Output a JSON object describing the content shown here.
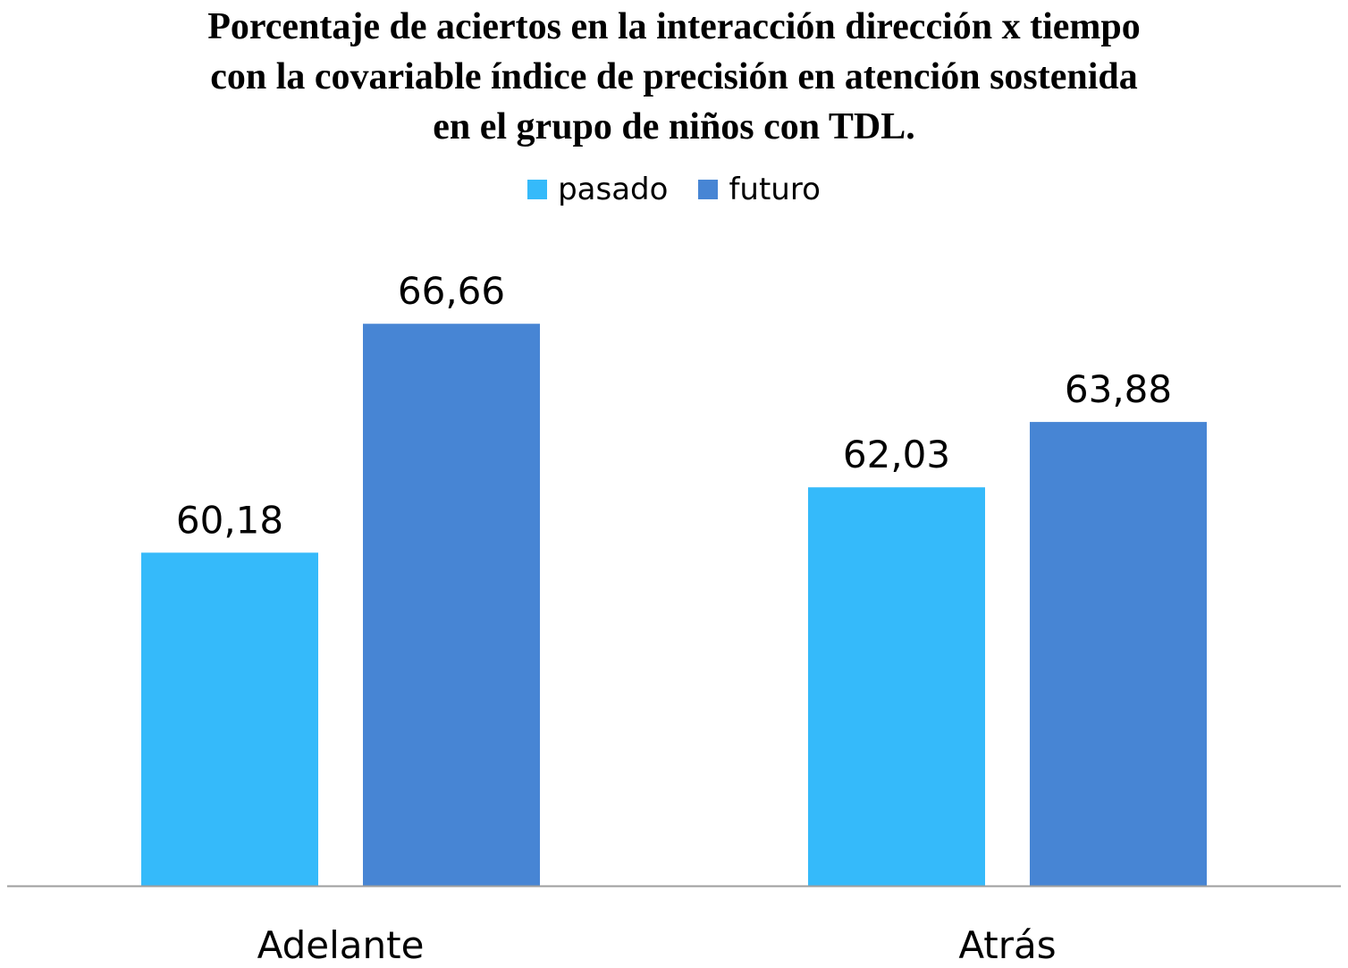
{
  "chart_data": {
    "type": "bar",
    "title_lines": [
      "Porcentaje de aciertos en la interacción dirección x tiempo",
      "con la covariable índice de precisión en atención sostenida",
      "en el grupo de niños con TDL."
    ],
    "categories": [
      "Adelante",
      "Atrás"
    ],
    "series": [
      {
        "name": "pasado",
        "color": "#35BAFA",
        "values": [
          60.18,
          62.03
        ],
        "labels": [
          "60,18",
          "62,03"
        ]
      },
      {
        "name": "futuro",
        "color": "#4785D4",
        "values": [
          66.66,
          63.88
        ],
        "labels": [
          "66,66",
          "63,88"
        ]
      }
    ],
    "xlabel": "",
    "ylabel": "",
    "ylim": [
      50.75,
      69.5
    ],
    "y_axis_visible": false,
    "grid": false,
    "legend_position": "top-center",
    "axis_color": "#9E9E9E"
  }
}
